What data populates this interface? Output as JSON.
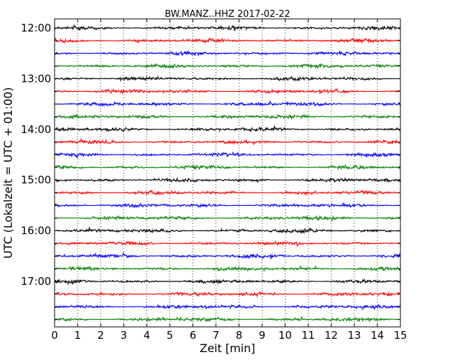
{
  "chart_data": {
    "type": "line",
    "title": "BW.MANZ..HHZ 2017-02-22",
    "xlabel": "Zeit  [min]",
    "ylabel": "UTC (Lokalzeit = UTC + 01:00)",
    "xlim": [
      0,
      15
    ],
    "x_ticks": [
      0,
      1,
      2,
      3,
      4,
      5,
      6,
      7,
      8,
      9,
      10,
      11,
      12,
      13,
      14,
      15
    ],
    "x_tick_labels": [
      "0",
      "1",
      "2",
      "3",
      "4",
      "5",
      "6",
      "7",
      "8",
      "9",
      "10",
      "11",
      "12",
      "13",
      "14",
      "15"
    ],
    "y_tick_labels": [
      "12:00",
      "13:00",
      "14:00",
      "15:00",
      "16:00",
      "17:00"
    ],
    "grid": "vertical dotted",
    "trace_colors": [
      "#000000",
      "#ff0000",
      "#0000ff",
      "#008000"
    ],
    "traces": [
      {
        "start": "12:00"
      },
      {
        "start": "12:15"
      },
      {
        "start": "12:30"
      },
      {
        "start": "12:45"
      },
      {
        "start": "13:00"
      },
      {
        "start": "13:15"
      },
      {
        "start": "13:30"
      },
      {
        "start": "13:45"
      },
      {
        "start": "14:00"
      },
      {
        "start": "14:15"
      },
      {
        "start": "14:30"
      },
      {
        "start": "14:45"
      },
      {
        "start": "15:00"
      },
      {
        "start": "15:15"
      },
      {
        "start": "15:30"
      },
      {
        "start": "15:45"
      },
      {
        "start": "16:00"
      },
      {
        "start": "16:15"
      },
      {
        "start": "16:30"
      },
      {
        "start": "16:45"
      },
      {
        "start": "17:00"
      },
      {
        "start": "17:15"
      },
      {
        "start": "17:30"
      },
      {
        "start": "17:45"
      }
    ]
  }
}
